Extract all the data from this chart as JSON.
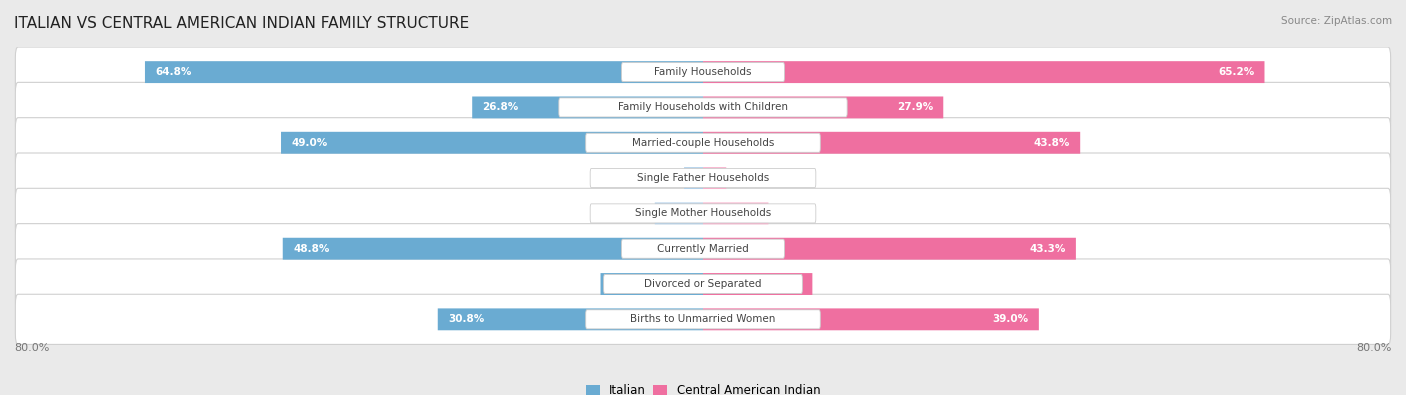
{
  "title": "ITALIAN VS CENTRAL AMERICAN INDIAN FAMILY STRUCTURE",
  "source": "Source: ZipAtlas.com",
  "categories": [
    "Family Households",
    "Family Households with Children",
    "Married-couple Households",
    "Single Father Households",
    "Single Mother Households",
    "Currently Married",
    "Divorced or Separated",
    "Births to Unmarried Women"
  ],
  "italian_values": [
    64.8,
    26.8,
    49.0,
    2.2,
    5.6,
    48.8,
    11.9,
    30.8
  ],
  "central_values": [
    65.2,
    27.9,
    43.8,
    2.7,
    7.6,
    43.3,
    12.7,
    39.0
  ],
  "italian_color_dark": "#6aabd2",
  "central_color_dark": "#ef6fa0",
  "italian_color_light": "#b0d0ea",
  "central_color_light": "#f8b0cb",
  "axis_max": 80.0,
  "bg_color": "#eaeaea",
  "row_bg_color": "#ffffff",
  "legend_italian": "Italian",
  "legend_central": "Central American Indian",
  "large_threshold": 10.0
}
